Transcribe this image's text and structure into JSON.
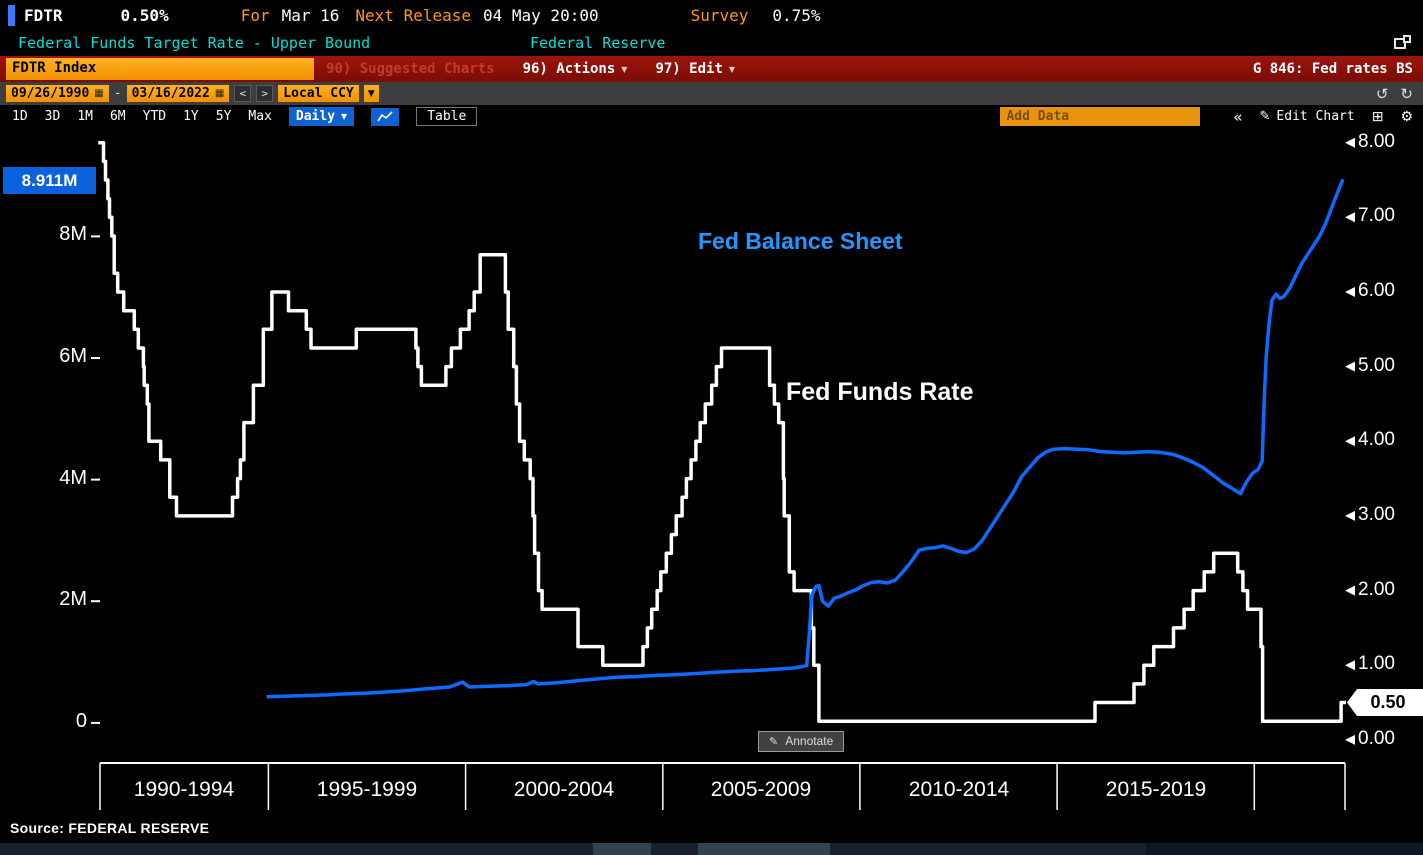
{
  "top_bar": {
    "ticker": "FDTR",
    "value": "0.50%",
    "for_label": "For",
    "for_value": "Mar 16",
    "next_release_label": "Next Release",
    "next_release_value": "04 May 20:00",
    "survey_label": "Survey",
    "survey_value": "0.75%"
  },
  "subtitle_bar": {
    "security_name": "Federal Funds Target Rate - Upper Bound",
    "source_name": "Federal Reserve"
  },
  "menu_bar": {
    "ticker_field": "FDTR Index",
    "suggested_charts_label": "90) Suggested Charts",
    "actions_label": "96) Actions",
    "edit_label": "97) Edit",
    "chart_id_label": "G 846: Fed rates BS"
  },
  "range_bar": {
    "start_date": "09/26/1990",
    "separator": "-",
    "end_date": "03/16/2022",
    "prev": "<",
    "next": ">",
    "currency_label": "Local CCY"
  },
  "period_bar": {
    "periods": [
      "1D",
      "3D",
      "1M",
      "6M",
      "YTD",
      "1Y",
      "5Y",
      "Max"
    ],
    "frequency_label": "Daily",
    "table_label": "Table",
    "add_data_placeholder": "Add Data",
    "edit_chart_label": "Edit Chart"
  },
  "icons": {
    "caret_down": "▼",
    "calendar": "▦",
    "undo": "↺",
    "redo": "↻",
    "collapse": "«",
    "pencil": "✎",
    "grid": "⊞",
    "gear": "⚙"
  },
  "chart_data": {
    "type": "line",
    "title": "G 846: Fed rates BS",
    "series_labels": {
      "balance_sheet": "Fed Balance Sheet",
      "fed_funds": "Fed Funds Rate"
    },
    "annotate_label": "Annotate",
    "source": "Source: FEDERAL RESERVE",
    "x_axis": {
      "range": [
        1990.73,
        2022.3
      ],
      "dividers": [
        1990.73,
        1995,
        2000,
        2005,
        2010,
        2015,
        2020,
        2022.3
      ],
      "labels": [
        {
          "center": 1992.86,
          "text": "1990-1994"
        },
        {
          "center": 1997.5,
          "text": "1995-1999"
        },
        {
          "center": 2002.5,
          "text": "2000-2004"
        },
        {
          "center": 2007.5,
          "text": "2005-2009"
        },
        {
          "center": 2012.5,
          "text": "2010-2014"
        },
        {
          "center": 2017.5,
          "text": "2015-2019"
        }
      ]
    },
    "left_axis": {
      "range": [
        -0.66,
        9.7
      ],
      "ticks": [
        {
          "v": 8,
          "label": "8M"
        },
        {
          "v": 6,
          "label": "6M"
        },
        {
          "v": 4,
          "label": "4M"
        },
        {
          "v": 2,
          "label": "2M"
        },
        {
          "v": 0,
          "label": "0"
        }
      ],
      "badge": "8.911M",
      "badge_value": 8.911
    },
    "right_axis": {
      "range": [
        -0.31,
        8.13
      ],
      "ticks": [
        {
          "v": 8,
          "label": "8.00"
        },
        {
          "v": 7,
          "label": "7.00"
        },
        {
          "v": 6,
          "label": "6.00"
        },
        {
          "v": 5,
          "label": "5.00"
        },
        {
          "v": 4,
          "label": "4.00"
        },
        {
          "v": 3,
          "label": "3.00"
        },
        {
          "v": 2,
          "label": "2.00"
        },
        {
          "v": 1,
          "label": "1.00"
        },
        {
          "v": 0,
          "label": "0.00"
        }
      ],
      "badge": "0.50",
      "badge_value": 0.5
    },
    "series": [
      {
        "name": "Fed Funds Rate",
        "axis": "right",
        "step": true,
        "color": "#ffffff",
        "width": 3.5,
        "points": [
          [
            1990.73,
            8.0
          ],
          [
            1990.82,
            7.75
          ],
          [
            1990.87,
            7.5
          ],
          [
            1990.93,
            7.25
          ],
          [
            1990.97,
            7.0
          ],
          [
            1991.03,
            6.75
          ],
          [
            1991.09,
            6.25
          ],
          [
            1991.18,
            6.0
          ],
          [
            1991.33,
            5.75
          ],
          [
            1991.6,
            5.5
          ],
          [
            1991.7,
            5.25
          ],
          [
            1991.83,
            5.0
          ],
          [
            1991.85,
            4.75
          ],
          [
            1991.93,
            4.5
          ],
          [
            1991.97,
            4.0
          ],
          [
            1992.27,
            3.75
          ],
          [
            1992.5,
            3.25
          ],
          [
            1992.67,
            3.0
          ],
          [
            1994.09,
            3.25
          ],
          [
            1994.22,
            3.5
          ],
          [
            1994.29,
            3.75
          ],
          [
            1994.38,
            4.25
          ],
          [
            1994.62,
            4.75
          ],
          [
            1994.87,
            5.5
          ],
          [
            1995.09,
            6.0
          ],
          [
            1995.51,
            5.75
          ],
          [
            1995.96,
            5.5
          ],
          [
            1996.08,
            5.25
          ],
          [
            1997.23,
            5.5
          ],
          [
            1998.74,
            5.25
          ],
          [
            1998.79,
            5.0
          ],
          [
            1998.88,
            4.75
          ],
          [
            1999.5,
            5.0
          ],
          [
            1999.64,
            5.25
          ],
          [
            1999.87,
            5.5
          ],
          [
            2000.09,
            5.75
          ],
          [
            2000.22,
            6.0
          ],
          [
            2000.37,
            6.5
          ],
          [
            2001.01,
            6.0
          ],
          [
            2001.08,
            5.5
          ],
          [
            2001.22,
            5.0
          ],
          [
            2001.29,
            4.5
          ],
          [
            2001.37,
            4.0
          ],
          [
            2001.49,
            3.75
          ],
          [
            2001.64,
            3.5
          ],
          [
            2001.71,
            3.0
          ],
          [
            2001.75,
            2.5
          ],
          [
            2001.85,
            2.0
          ],
          [
            2001.94,
            1.75
          ],
          [
            2002.85,
            1.25
          ],
          [
            2003.48,
            1.0
          ],
          [
            2004.5,
            1.25
          ],
          [
            2004.61,
            1.5
          ],
          [
            2004.72,
            1.75
          ],
          [
            2004.86,
            2.0
          ],
          [
            2004.95,
            2.25
          ],
          [
            2005.09,
            2.5
          ],
          [
            2005.22,
            2.75
          ],
          [
            2005.34,
            3.0
          ],
          [
            2005.49,
            3.25
          ],
          [
            2005.6,
            3.5
          ],
          [
            2005.72,
            3.75
          ],
          [
            2005.84,
            4.0
          ],
          [
            2005.95,
            4.25
          ],
          [
            2006.08,
            4.5
          ],
          [
            2006.24,
            4.75
          ],
          [
            2006.36,
            5.0
          ],
          [
            2006.49,
            5.25
          ],
          [
            2007.71,
            4.75
          ],
          [
            2007.83,
            4.5
          ],
          [
            2007.94,
            4.25
          ],
          [
            2008.06,
            3.5
          ],
          [
            2008.08,
            3.0
          ],
          [
            2008.21,
            2.25
          ],
          [
            2008.33,
            2.0
          ],
          [
            2008.77,
            1.5
          ],
          [
            2008.83,
            1.0
          ],
          [
            2008.96,
            0.25
          ],
          [
            2015.96,
            0.5
          ],
          [
            2016.95,
            0.75
          ],
          [
            2017.2,
            1.0
          ],
          [
            2017.45,
            1.25
          ],
          [
            2017.95,
            1.5
          ],
          [
            2018.22,
            1.75
          ],
          [
            2018.45,
            2.0
          ],
          [
            2018.73,
            2.25
          ],
          [
            2018.97,
            2.5
          ],
          [
            2019.58,
            2.25
          ],
          [
            2019.71,
            2.0
          ],
          [
            2019.83,
            1.75
          ],
          [
            2020.17,
            1.25
          ],
          [
            2020.21,
            0.25
          ],
          [
            2022.2,
            0.5
          ],
          [
            2022.28,
            0.5
          ]
        ]
      },
      {
        "name": "Fed Balance Sheet",
        "axis": "left",
        "step": false,
        "color": "#0d6bff",
        "width": 3.5,
        "points": [
          [
            1995.0,
            0.43
          ],
          [
            1995.5,
            0.44
          ],
          [
            1996.0,
            0.45
          ],
          [
            1996.5,
            0.46
          ],
          [
            1997.0,
            0.48
          ],
          [
            1997.5,
            0.49
          ],
          [
            1998.0,
            0.51
          ],
          [
            1998.5,
            0.53
          ],
          [
            1999.0,
            0.56
          ],
          [
            1999.6,
            0.59
          ],
          [
            1999.92,
            0.67
          ],
          [
            2000.1,
            0.59
          ],
          [
            2000.5,
            0.6
          ],
          [
            2001.0,
            0.61
          ],
          [
            2001.55,
            0.63
          ],
          [
            2001.72,
            0.68
          ],
          [
            2001.85,
            0.64
          ],
          [
            2002.3,
            0.66
          ],
          [
            2002.8,
            0.69
          ],
          [
            2003.3,
            0.72
          ],
          [
            2003.8,
            0.75
          ],
          [
            2004.3,
            0.76
          ],
          [
            2004.8,
            0.78
          ],
          [
            2005.3,
            0.79
          ],
          [
            2005.8,
            0.81
          ],
          [
            2006.3,
            0.83
          ],
          [
            2006.8,
            0.85
          ],
          [
            2007.3,
            0.86
          ],
          [
            2007.8,
            0.88
          ],
          [
            2008.3,
            0.9
          ],
          [
            2008.65,
            0.94
          ],
          [
            2008.72,
            1.5
          ],
          [
            2008.78,
            2.1
          ],
          [
            2008.88,
            2.24
          ],
          [
            2008.96,
            2.26
          ],
          [
            2009.05,
            2.0
          ],
          [
            2009.2,
            1.92
          ],
          [
            2009.35,
            2.05
          ],
          [
            2009.5,
            2.08
          ],
          [
            2009.7,
            2.14
          ],
          [
            2009.9,
            2.19
          ],
          [
            2010.1,
            2.26
          ],
          [
            2010.3,
            2.31
          ],
          [
            2010.5,
            2.32
          ],
          [
            2010.7,
            2.3
          ],
          [
            2010.9,
            2.35
          ],
          [
            2011.1,
            2.49
          ],
          [
            2011.3,
            2.65
          ],
          [
            2011.5,
            2.84
          ],
          [
            2011.7,
            2.87
          ],
          [
            2011.9,
            2.88
          ],
          [
            2012.1,
            2.91
          ],
          [
            2012.3,
            2.87
          ],
          [
            2012.5,
            2.82
          ],
          [
            2012.7,
            2.8
          ],
          [
            2012.9,
            2.86
          ],
          [
            2013.1,
            3.0
          ],
          [
            2013.3,
            3.2
          ],
          [
            2013.5,
            3.4
          ],
          [
            2013.7,
            3.6
          ],
          [
            2013.9,
            3.8
          ],
          [
            2014.1,
            4.05
          ],
          [
            2014.3,
            4.2
          ],
          [
            2014.5,
            4.35
          ],
          [
            2014.7,
            4.45
          ],
          [
            2014.9,
            4.5
          ],
          [
            2015.2,
            4.51
          ],
          [
            2015.5,
            4.5
          ],
          [
            2015.8,
            4.49
          ],
          [
            2016.1,
            4.46
          ],
          [
            2016.4,
            4.45
          ],
          [
            2016.7,
            4.44
          ],
          [
            2017.0,
            4.45
          ],
          [
            2017.3,
            4.46
          ],
          [
            2017.6,
            4.45
          ],
          [
            2017.9,
            4.42
          ],
          [
            2018.1,
            4.38
          ],
          [
            2018.4,
            4.3
          ],
          [
            2018.7,
            4.2
          ],
          [
            2019.0,
            4.05
          ],
          [
            2019.2,
            3.95
          ],
          [
            2019.45,
            3.85
          ],
          [
            2019.65,
            3.77
          ],
          [
            2019.8,
            3.96
          ],
          [
            2019.95,
            4.1
          ],
          [
            2020.1,
            4.17
          ],
          [
            2020.2,
            4.31
          ],
          [
            2020.25,
            5.3
          ],
          [
            2020.3,
            6.0
          ],
          [
            2020.37,
            6.55
          ],
          [
            2020.45,
            6.95
          ],
          [
            2020.55,
            7.05
          ],
          [
            2020.65,
            6.98
          ],
          [
            2020.75,
            7.01
          ],
          [
            2020.9,
            7.15
          ],
          [
            2021.05,
            7.35
          ],
          [
            2021.2,
            7.55
          ],
          [
            2021.35,
            7.7
          ],
          [
            2021.5,
            7.85
          ],
          [
            2021.65,
            8.0
          ],
          [
            2021.8,
            8.2
          ],
          [
            2021.95,
            8.45
          ],
          [
            2022.1,
            8.7
          ],
          [
            2022.23,
            8.911
          ]
        ]
      }
    ]
  }
}
